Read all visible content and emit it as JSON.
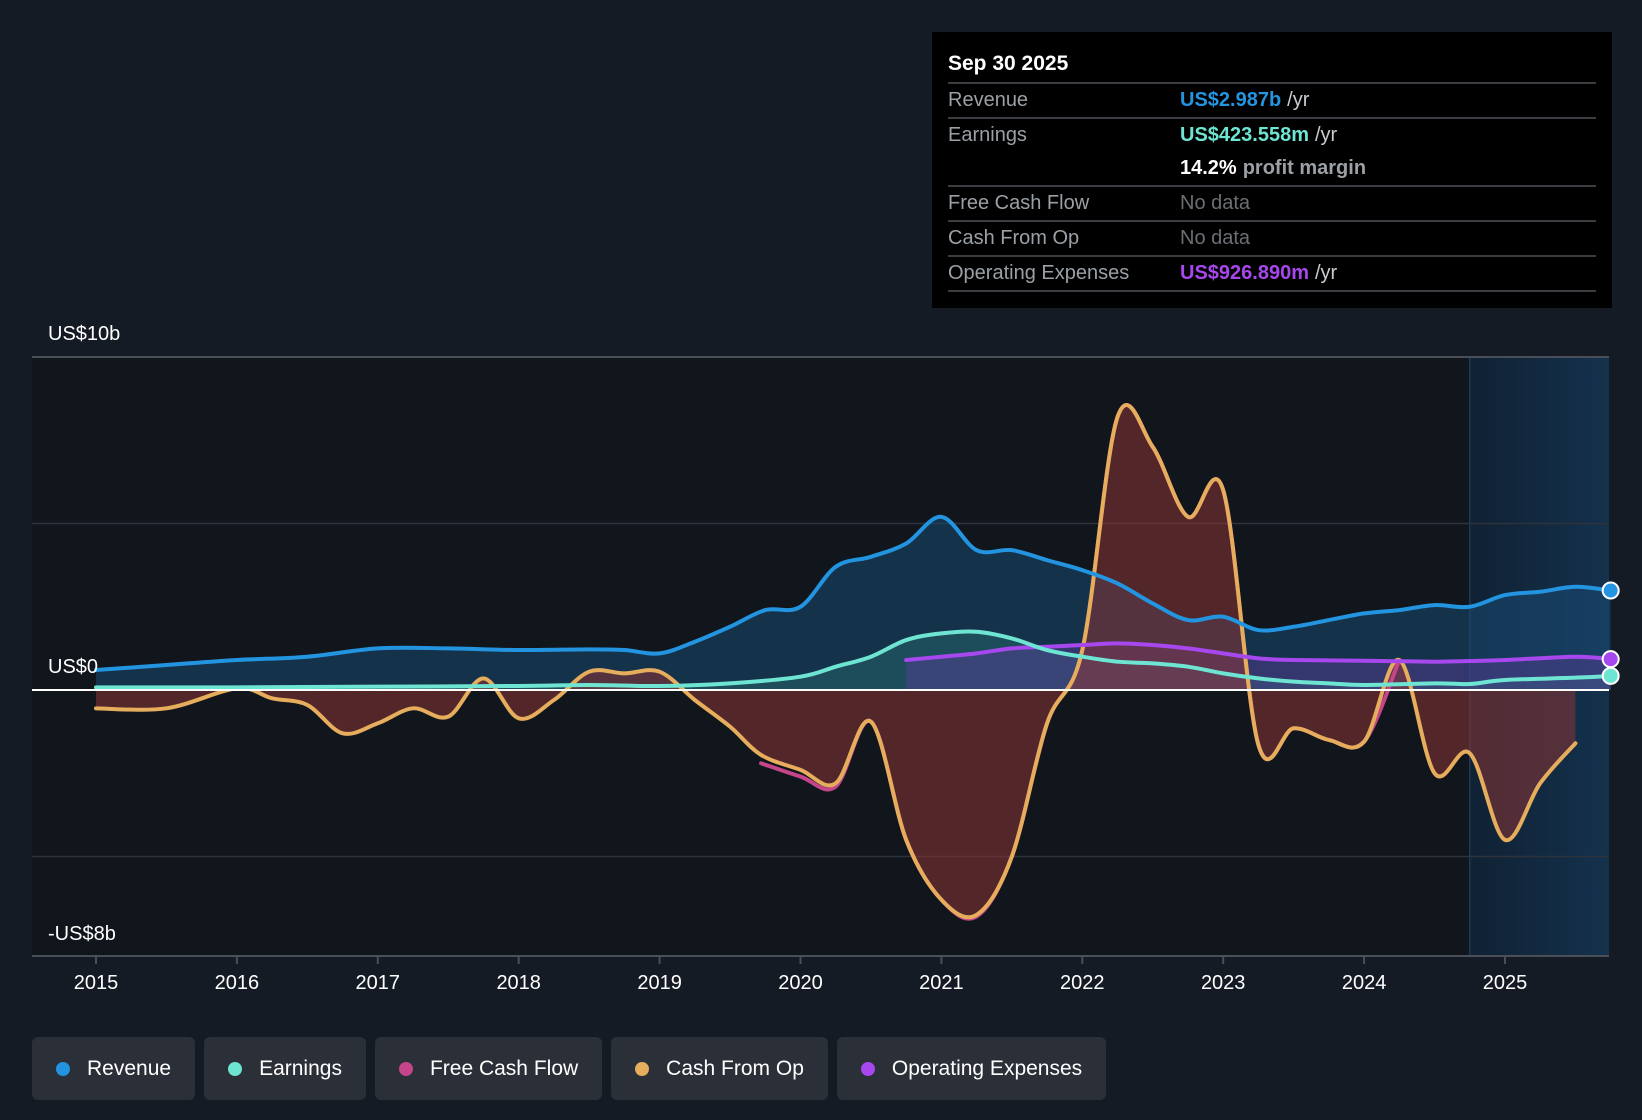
{
  "tooltip": {
    "date": "Sep 30 2025",
    "rows": [
      {
        "label": "Revenue",
        "value": "US$2.987b",
        "unit": "/yr",
        "color": "#2394e0"
      },
      {
        "label": "Earnings",
        "value": "US$423.558m",
        "unit": "/yr",
        "color": "#6ee5d2"
      },
      {
        "label": "",
        "value": "14.2%",
        "unit": "profit margin",
        "color": "#ffffff"
      },
      {
        "label": "Free Cash Flow",
        "value": "No data",
        "unit": "",
        "color": "#6b6f74"
      },
      {
        "label": "Cash From Op",
        "value": "No data",
        "unit": "",
        "color": "#6b6f74"
      },
      {
        "label": "Operating Expenses",
        "value": "US$926.890m",
        "unit": "/yr",
        "color": "#a748ee"
      }
    ]
  },
  "legend": [
    {
      "label": "Revenue",
      "color": "#2394e0"
    },
    {
      "label": "Earnings",
      "color": "#6ee5d2"
    },
    {
      "label": "Free Cash Flow",
      "color": "#c4458a"
    },
    {
      "label": "Cash From Op",
      "color": "#e6ad5c"
    },
    {
      "label": "Operating Expenses",
      "color": "#a748ee"
    }
  ],
  "chart_data": {
    "type": "area",
    "title": "",
    "xlabel": "",
    "ylabel": "",
    "ylim": [
      -8,
      10
    ],
    "y_tick_labels": [
      {
        "value": 10,
        "label": "US$10b"
      },
      {
        "value": 0,
        "label": "US$0"
      },
      {
        "value": -8,
        "label": "-US$8b"
      }
    ],
    "gridlines": [
      10,
      5,
      0,
      -5
    ],
    "x_ticks": [
      "2015",
      "2016",
      "2017",
      "2018",
      "2019",
      "2020",
      "2021",
      "2022",
      "2023",
      "2024",
      "2025"
    ],
    "xlim": [
      2014.55,
      2025.75
    ],
    "forecast_region_start": 2024.75,
    "units": "US$ billions",
    "series": [
      {
        "name": "Revenue",
        "color": "#2394e0",
        "points": [
          [
            2015.0,
            0.6
          ],
          [
            2015.5,
            0.75
          ],
          [
            2016.0,
            0.9
          ],
          [
            2016.5,
            1.0
          ],
          [
            2017.0,
            1.25
          ],
          [
            2017.5,
            1.25
          ],
          [
            2018.0,
            1.2
          ],
          [
            2018.5,
            1.22
          ],
          [
            2018.75,
            1.2
          ],
          [
            2019.0,
            1.1
          ],
          [
            2019.25,
            1.45
          ],
          [
            2019.5,
            1.9
          ],
          [
            2019.75,
            2.4
          ],
          [
            2020.0,
            2.5
          ],
          [
            2020.25,
            3.7
          ],
          [
            2020.5,
            4.0
          ],
          [
            2020.75,
            4.4
          ],
          [
            2021.0,
            5.2
          ],
          [
            2021.25,
            4.2
          ],
          [
            2021.5,
            4.2
          ],
          [
            2021.75,
            3.9
          ],
          [
            2022.0,
            3.6
          ],
          [
            2022.25,
            3.2
          ],
          [
            2022.5,
            2.6
          ],
          [
            2022.75,
            2.1
          ],
          [
            2023.0,
            2.2
          ],
          [
            2023.25,
            1.8
          ],
          [
            2023.5,
            1.9
          ],
          [
            2023.75,
            2.1
          ],
          [
            2024.0,
            2.3
          ],
          [
            2024.25,
            2.4
          ],
          [
            2024.5,
            2.55
          ],
          [
            2024.75,
            2.5
          ],
          [
            2025.0,
            2.85
          ],
          [
            2025.25,
            2.95
          ],
          [
            2025.5,
            3.1
          ],
          [
            2025.75,
            2.987
          ]
        ]
      },
      {
        "name": "Earnings",
        "color": "#6ee5d2",
        "points": [
          [
            2015.0,
            0.08
          ],
          [
            2016.0,
            0.08
          ],
          [
            2017.0,
            0.1
          ],
          [
            2018.0,
            0.12
          ],
          [
            2018.5,
            0.15
          ],
          [
            2019.0,
            0.12
          ],
          [
            2019.5,
            0.2
          ],
          [
            2020.0,
            0.4
          ],
          [
            2020.25,
            0.7
          ],
          [
            2020.5,
            1.0
          ],
          [
            2020.75,
            1.5
          ],
          [
            2021.0,
            1.7
          ],
          [
            2021.25,
            1.75
          ],
          [
            2021.5,
            1.55
          ],
          [
            2021.75,
            1.2
          ],
          [
            2022.0,
            1.0
          ],
          [
            2022.25,
            0.85
          ],
          [
            2022.5,
            0.8
          ],
          [
            2022.75,
            0.7
          ],
          [
            2023.0,
            0.5
          ],
          [
            2023.25,
            0.35
          ],
          [
            2023.5,
            0.25
          ],
          [
            2023.75,
            0.2
          ],
          [
            2024.0,
            0.15
          ],
          [
            2024.5,
            0.2
          ],
          [
            2024.75,
            0.18
          ],
          [
            2025.0,
            0.3
          ],
          [
            2025.5,
            0.37
          ],
          [
            2025.75,
            0.424
          ]
        ]
      },
      {
        "name": "Free Cash Flow",
        "color": "#c4458a",
        "points": [
          [
            2019.72,
            -2.2
          ],
          [
            2020.0,
            -2.6
          ],
          [
            2020.25,
            -2.9
          ],
          [
            2020.5,
            -0.95
          ],
          [
            2020.75,
            -4.5
          ],
          [
            2021.0,
            -6.3
          ],
          [
            2021.25,
            -6.8
          ],
          [
            2021.5,
            -5.0
          ],
          [
            2021.75,
            -1.0
          ],
          [
            2022.0,
            1.2
          ],
          [
            2022.25,
            8.2
          ],
          [
            2022.5,
            7.3
          ],
          [
            2022.75,
            5.2
          ],
          [
            2023.0,
            6.0
          ],
          [
            2023.25,
            -1.65
          ],
          [
            2023.5,
            -1.15
          ],
          [
            2023.75,
            -1.5
          ],
          [
            2024.0,
            -1.55
          ],
          [
            2024.25,
            0.9
          ]
        ]
      },
      {
        "name": "Cash From Op",
        "color": "#e6ad5c",
        "points": [
          [
            2015.0,
            -0.55
          ],
          [
            2015.5,
            -0.55
          ],
          [
            2016.0,
            0.05
          ],
          [
            2016.25,
            -0.25
          ],
          [
            2016.5,
            -0.45
          ],
          [
            2016.75,
            -1.3
          ],
          [
            2017.0,
            -1.0
          ],
          [
            2017.25,
            -0.55
          ],
          [
            2017.5,
            -0.8
          ],
          [
            2017.75,
            0.35
          ],
          [
            2018.0,
            -0.85
          ],
          [
            2018.25,
            -0.3
          ],
          [
            2018.5,
            0.55
          ],
          [
            2018.75,
            0.5
          ],
          [
            2019.0,
            0.55
          ],
          [
            2019.25,
            -0.3
          ],
          [
            2019.5,
            -1.1
          ],
          [
            2019.72,
            -1.95
          ],
          [
            2020.0,
            -2.4
          ],
          [
            2020.25,
            -2.8
          ],
          [
            2020.5,
            -0.95
          ],
          [
            2020.75,
            -4.5
          ],
          [
            2021.0,
            -6.3
          ],
          [
            2021.25,
            -6.75
          ],
          [
            2021.5,
            -5.0
          ],
          [
            2021.75,
            -1.0
          ],
          [
            2022.0,
            1.2
          ],
          [
            2022.25,
            8.2
          ],
          [
            2022.5,
            7.3
          ],
          [
            2022.75,
            5.2
          ],
          [
            2023.0,
            6.0
          ],
          [
            2023.25,
            -1.65
          ],
          [
            2023.5,
            -1.15
          ],
          [
            2023.75,
            -1.5
          ],
          [
            2024.0,
            -1.55
          ],
          [
            2024.25,
            0.9
          ],
          [
            2024.5,
            -2.5
          ],
          [
            2024.75,
            -1.9
          ],
          [
            2025.0,
            -4.5
          ],
          [
            2025.25,
            -2.8
          ],
          [
            2025.5,
            -1.6
          ]
        ]
      },
      {
        "name": "Operating Expenses",
        "color": "#a748ee",
        "points": [
          [
            2020.75,
            0.9
          ],
          [
            2021.0,
            1.0
          ],
          [
            2021.25,
            1.1
          ],
          [
            2021.5,
            1.25
          ],
          [
            2021.75,
            1.3
          ],
          [
            2022.0,
            1.35
          ],
          [
            2022.25,
            1.4
          ],
          [
            2022.5,
            1.35
          ],
          [
            2022.75,
            1.25
          ],
          [
            2023.0,
            1.1
          ],
          [
            2023.25,
            0.95
          ],
          [
            2023.5,
            0.9
          ],
          [
            2024.0,
            0.88
          ],
          [
            2024.5,
            0.85
          ],
          [
            2024.75,
            0.87
          ],
          [
            2025.0,
            0.9
          ],
          [
            2025.5,
            1.0
          ],
          [
            2025.75,
            0.927
          ]
        ]
      }
    ]
  }
}
